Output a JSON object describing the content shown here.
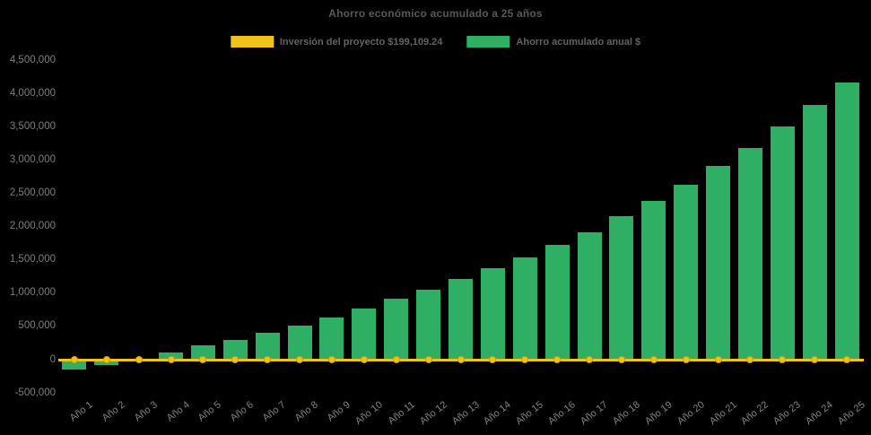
{
  "title": "Ahorro económico acumulado a 25 años",
  "colors": {
    "background": "#000000",
    "bar_green": "#2FAF63",
    "line_yellow": "#EFC31A",
    "marker_border": "#D69F0B",
    "title_text": "#595959",
    "axis_text": "#7F7F7F"
  },
  "legend": {
    "items": [
      {
        "label": "Inversión del proyecto $199,109.24",
        "color": "#EFC31A",
        "series_type": "line"
      },
      {
        "label": "Ahorro acumulado anual $",
        "color": "#2FAF63",
        "series_type": "bar"
      }
    ]
  },
  "chart_data": {
    "type": "bar",
    "title": "Ahorro económico acumulado a 25 años",
    "categories": [
      "Año 1",
      "Año 2",
      "Año 3",
      "Año 4",
      "Año 5",
      "Año 6",
      "Año 7",
      "Año 8",
      "Año 9",
      "Año 10",
      "Año 11",
      "Año 12",
      "Año 13",
      "Año 14",
      "Año 15",
      "Año 16",
      "Año 17",
      "Año 18",
      "Año 19",
      "Año 20",
      "Año 21",
      "Año 22",
      "Año 23",
      "Año 24",
      "Año 25"
    ],
    "series": [
      {
        "name": "Inversión del proyecto $199,109.24",
        "type": "line",
        "color": "#EFC31A",
        "values": [
          0,
          0,
          0,
          0,
          0,
          0,
          0,
          0,
          0,
          0,
          0,
          0,
          0,
          0,
          0,
          0,
          0,
          0,
          0,
          0,
          0,
          0,
          0,
          0,
          0
        ]
      },
      {
        "name": "Ahorro acumulado anual $",
        "type": "bar",
        "color": "#2FAF63",
        "values": [
          -150000,
          -80000,
          20000,
          110000,
          210000,
          300000,
          400000,
          510000,
          630000,
          765000,
          915000,
          1050000,
          1210000,
          1375000,
          1535000,
          1720000,
          1920000,
          2160000,
          2390000,
          2625000,
          2905000,
          3180000,
          3510000,
          3830000,
          4170000
        ]
      }
    ],
    "xlabel": "",
    "ylabel": "",
    "ylim": [
      -500000,
      4500000
    ],
    "ytick_interval": 500000,
    "grid": false,
    "legend_position": "top"
  }
}
